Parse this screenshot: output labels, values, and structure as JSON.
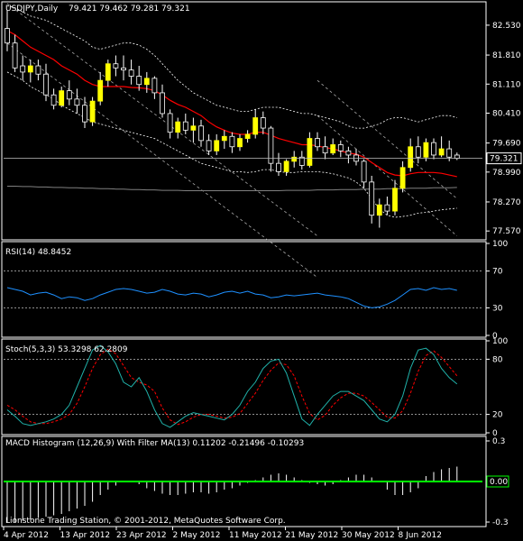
{
  "window": {
    "symbol_title": "USDJPY,Daily",
    "ohlc_readout": "79.421 79.462 79.281 79.321",
    "copyright": "Lionstone Trading Station, © 2001-2012, MetaQuotes Software Corp."
  },
  "colors": {
    "background": "#000000",
    "frame": "#ffffff",
    "bull_candle": "#ffff00",
    "bear_candle": "#000000",
    "candle_wick": "#ffffff",
    "ma_line": "#ff0000",
    "envelope": "#ffffff",
    "long_ma": "#808080",
    "rsi_line": "#1e90ff",
    "stoch_main": "#20b2aa",
    "stoch_signal": "#ff0000",
    "macd_bars": "#ffffff",
    "macd_filter": "#00ff00"
  },
  "chart_data": [
    {
      "type": "candlestick",
      "title": "USDJPY,Daily",
      "y_ticks": [
        "82.530",
        "81.810",
        "81.110",
        "80.410",
        "79.690",
        "78.990",
        "78.270",
        "77.570"
      ],
      "ylim": [
        77.4,
        83.05
      ],
      "current_price": "79.321",
      "current_value": 79.321,
      "dates": [
        "4 Apr 2012",
        "13 Apr 2012",
        "23 Apr 2012",
        "2 May 2012",
        "11 May 2012",
        "21 May 2012",
        "30 May 2012",
        "8 Jun 2012"
      ],
      "candles": [
        [
          82.45,
          82.9,
          81.9,
          82.1
        ],
        [
          82.1,
          82.3,
          81.4,
          81.5
        ],
        [
          81.55,
          81.8,
          81.2,
          81.4
        ],
        [
          81.4,
          81.7,
          81.15,
          81.55
        ],
        [
          81.55,
          81.7,
          81.2,
          81.35
        ],
        [
          81.35,
          81.6,
          80.7,
          80.85
        ],
        [
          80.85,
          81.0,
          80.5,
          80.6
        ],
        [
          80.6,
          81.05,
          80.55,
          80.95
        ],
        [
          80.95,
          81.2,
          80.6,
          80.75
        ],
        [
          80.75,
          81.0,
          80.4,
          80.6
        ],
        [
          80.6,
          80.8,
          80.05,
          80.2
        ],
        [
          80.2,
          80.8,
          80.1,
          80.7
        ],
        [
          80.7,
          81.4,
          80.6,
          81.2
        ],
        [
          81.2,
          81.7,
          81.05,
          81.6
        ],
        [
          81.6,
          81.8,
          81.3,
          81.5
        ],
        [
          81.5,
          81.8,
          81.2,
          81.45
        ],
        [
          81.45,
          81.7,
          81.1,
          81.3
        ],
        [
          81.3,
          81.55,
          80.95,
          81.1
        ],
        [
          81.1,
          81.4,
          80.9,
          81.25
        ],
        [
          81.25,
          81.3,
          80.75,
          80.9
        ],
        [
          80.9,
          81.1,
          80.3,
          80.4
        ],
        [
          80.4,
          80.5,
          79.8,
          79.95
        ],
        [
          79.95,
          80.3,
          79.8,
          80.2
        ],
        [
          80.2,
          80.4,
          79.9,
          80.0
        ],
        [
          80.0,
          80.3,
          79.7,
          80.1
        ],
        [
          80.1,
          80.25,
          79.6,
          79.75
        ],
        [
          79.75,
          79.9,
          79.4,
          79.5
        ],
        [
          79.5,
          79.9,
          79.4,
          79.75
        ],
        [
          79.75,
          80.0,
          79.55,
          79.85
        ],
        [
          79.85,
          79.95,
          79.45,
          79.6
        ],
        [
          79.6,
          79.9,
          79.5,
          79.8
        ],
        [
          79.8,
          80.0,
          79.7,
          79.9
        ],
        [
          79.9,
          80.5,
          79.8,
          80.3
        ],
        [
          80.3,
          80.45,
          79.9,
          80.05
        ],
        [
          80.05,
          80.1,
          79.0,
          79.2
        ],
        [
          79.2,
          79.45,
          78.9,
          79.0
        ],
        [
          79.0,
          79.3,
          78.9,
          79.25
        ],
        [
          79.25,
          79.5,
          79.1,
          79.35
        ],
        [
          79.35,
          79.5,
          79.05,
          79.15
        ],
        [
          79.15,
          79.95,
          79.1,
          79.8
        ],
        [
          79.8,
          79.95,
          79.5,
          79.6
        ],
        [
          79.6,
          79.85,
          79.3,
          79.45
        ],
        [
          79.45,
          79.8,
          79.4,
          79.65
        ],
        [
          79.65,
          79.75,
          79.35,
          79.5
        ],
        [
          79.5,
          79.6,
          79.2,
          79.4
        ],
        [
          79.4,
          79.55,
          79.15,
          79.25
        ],
        [
          79.25,
          79.3,
          78.6,
          78.75
        ],
        [
          78.75,
          78.9,
          77.75,
          77.95
        ],
        [
          77.95,
          78.35,
          77.65,
          78.2
        ],
        [
          78.2,
          78.4,
          77.95,
          78.05
        ],
        [
          78.05,
          78.8,
          77.95,
          78.6
        ],
        [
          78.6,
          79.25,
          78.5,
          79.1
        ],
        [
          79.1,
          79.8,
          79.0,
          79.6
        ],
        [
          79.6,
          79.85,
          79.2,
          79.35
        ],
        [
          79.35,
          79.8,
          79.25,
          79.7
        ],
        [
          79.7,
          79.8,
          79.3,
          79.4
        ],
        [
          79.4,
          79.85,
          79.35,
          79.55
        ],
        [
          79.55,
          79.75,
          79.25,
          79.35
        ],
        [
          79.4,
          79.46,
          79.28,
          79.32
        ]
      ],
      "ma": [
        82.4,
        82.3,
        82.15,
        82.0,
        81.9,
        81.8,
        81.7,
        81.55,
        81.45,
        81.35,
        81.2,
        81.1,
        81.05,
        81.05,
        81.05,
        81.05,
        81.03,
        81.02,
        81.0,
        80.95,
        80.85,
        80.72,
        80.62,
        80.55,
        80.45,
        80.35,
        80.2,
        80.08,
        80.0,
        79.93,
        79.9,
        79.9,
        79.95,
        79.95,
        79.88,
        79.8,
        79.75,
        79.7,
        79.65,
        79.65,
        79.62,
        79.58,
        79.55,
        79.5,
        79.45,
        79.42,
        79.35,
        79.22,
        79.1,
        78.98,
        78.92,
        78.9,
        78.95,
        78.98,
        78.98,
        78.98,
        78.96,
        78.92,
        78.88
      ],
      "env_upper": [
        83.0,
        82.95,
        82.85,
        82.75,
        82.7,
        82.65,
        82.55,
        82.45,
        82.35,
        82.25,
        82.15,
        82.0,
        81.95,
        82.0,
        82.05,
        82.1,
        82.1,
        82.05,
        81.95,
        81.8,
        81.6,
        81.4,
        81.2,
        81.05,
        80.9,
        80.8,
        80.7,
        80.6,
        80.55,
        80.5,
        80.45,
        80.45,
        80.5,
        80.55,
        80.55,
        80.55,
        80.5,
        80.45,
        80.4,
        80.4,
        80.35,
        80.3,
        80.25,
        80.2,
        80.1,
        80.05,
        80.05,
        80.1,
        80.15,
        80.25,
        80.3,
        80.3,
        80.25,
        80.2,
        80.25,
        80.3,
        80.35,
        80.35,
        80.3
      ],
      "env_lower": [
        81.4,
        81.3,
        81.2,
        81.05,
        80.95,
        80.85,
        80.75,
        80.6,
        80.5,
        80.4,
        80.3,
        80.2,
        80.15,
        80.1,
        80.05,
        80.0,
        79.95,
        79.9,
        79.85,
        79.8,
        79.7,
        79.6,
        79.5,
        79.4,
        79.3,
        79.2,
        79.15,
        79.1,
        79.05,
        79.0,
        79.0,
        78.98,
        79.0,
        79.05,
        79.05,
        79.0,
        78.98,
        78.98,
        79.0,
        79.0,
        79.0,
        78.98,
        78.95,
        78.9,
        78.85,
        78.75,
        78.6,
        78.35,
        78.1,
        77.95,
        77.9,
        77.92,
        77.95,
        78.0,
        78.02,
        78.05,
        78.08,
        78.1,
        78.12
      ],
      "long_ma": [
        78.65,
        78.65,
        78.64,
        78.64,
        78.63,
        78.63,
        78.62,
        78.62,
        78.61,
        78.61,
        78.6,
        78.6,
        78.59,
        78.59,
        78.58,
        78.58,
        78.57,
        78.57,
        78.56,
        78.56,
        78.55,
        78.55,
        78.55,
        78.54,
        78.54,
        78.54,
        78.54,
        78.54,
        78.54,
        78.54,
        78.54,
        78.54,
        78.54,
        78.54,
        78.54,
        78.54,
        78.55,
        78.55,
        78.55,
        78.55,
        78.56,
        78.56,
        78.56,
        78.57,
        78.57,
        78.57,
        78.58,
        78.58,
        78.58,
        78.59,
        78.59,
        78.59,
        78.6,
        78.6,
        78.6,
        78.61,
        78.61,
        78.61,
        78.62
      ],
      "channel": [
        [
          0,
          83.05,
          40,
          77.45
        ],
        [
          0,
          82.1,
          40,
          76.45
        ],
        [
          40,
          81.2,
          58,
          78.35
        ],
        [
          40,
          80.35,
          58,
          77.45
        ]
      ]
    },
    {
      "type": "line",
      "title": "RSI(14) 48.8452",
      "y_ticks": [
        "100",
        "70",
        "30",
        "0"
      ],
      "ylim": [
        0,
        100
      ],
      "levels": [
        70,
        30
      ],
      "values": [
        52,
        50,
        48,
        44,
        46,
        47,
        44,
        40,
        42,
        41,
        38,
        40,
        44,
        47,
        50,
        51,
        50,
        48,
        46,
        47,
        50,
        48,
        45,
        44,
        46,
        45,
        42,
        44,
        47,
        48,
        46,
        48,
        45,
        44,
        41,
        42,
        44,
        43,
        44,
        45,
        46,
        44,
        43,
        42,
        40,
        36,
        32,
        30,
        31,
        34,
        38,
        44,
        50,
        51,
        49,
        52,
        50,
        51,
        49
      ]
    },
    {
      "type": "line",
      "title": "Stoch(5,3,3) 53.3298 62.2809",
      "y_ticks": [
        "100",
        "80",
        "20",
        "0"
      ],
      "ylim": [
        0,
        100
      ],
      "levels": [
        80,
        20
      ],
      "series": [
        {
          "values": [
            25,
            18,
            10,
            8,
            10,
            12,
            15,
            20,
            30,
            50,
            70,
            90,
            95,
            88,
            75,
            55,
            50,
            60,
            45,
            25,
            10,
            6,
            12,
            18,
            22,
            20,
            18,
            16,
            14,
            20,
            30,
            45,
            55,
            70,
            78,
            80,
            65,
            40,
            15,
            8,
            20,
            30,
            40,
            45,
            45,
            40,
            35,
            25,
            15,
            12,
            20,
            40,
            70,
            90,
            92,
            85,
            70,
            60,
            53
          ]
        },
        {
          "values": [
            30,
            25,
            18,
            12,
            10,
            10,
            12,
            15,
            20,
            32,
            50,
            70,
            85,
            91,
            86,
            73,
            60,
            55,
            52,
            45,
            27,
            14,
            9,
            12,
            17,
            20,
            20,
            18,
            16,
            17,
            21,
            32,
            43,
            57,
            68,
            76,
            74,
            62,
            40,
            21,
            14,
            19,
            30,
            38,
            43,
            43,
            40,
            33,
            25,
            17,
            16,
            24,
            43,
            67,
            84,
            89,
            82,
            72,
            62
          ]
        }
      ]
    },
    {
      "type": "bar",
      "title": "MACD Histogram (12,26,9) With Filter MA(13) 0.11202 -0.21496 -0.10293",
      "y_ticks": [
        "0.3",
        "0.00",
        "-0.3"
      ],
      "ylim": [
        -0.32,
        0.32
      ],
      "zero_label": "0.00",
      "values": [
        -0.3,
        -0.3,
        -0.29,
        -0.28,
        -0.27,
        -0.26,
        -0.25,
        -0.24,
        -0.22,
        -0.2,
        -0.18,
        -0.15,
        -0.1,
        -0.06,
        -0.03,
        0,
        0,
        -0.02,
        -0.05,
        -0.07,
        -0.09,
        -0.1,
        -0.1,
        -0.09,
        -0.08,
        -0.08,
        -0.09,
        -0.08,
        -0.06,
        -0.05,
        -0.03,
        -0.01,
        0.01,
        0.03,
        0.05,
        0.06,
        0.05,
        0.03,
        0.01,
        -0.01,
        -0.02,
        -0.03,
        -0.02,
        0.01,
        0.03,
        0.05,
        0.05,
        0.03,
        0,
        -0.06,
        -0.1,
        -0.1,
        -0.08,
        -0.05,
        0.04,
        0.07,
        0.09,
        0.1,
        0.11
      ]
    }
  ]
}
